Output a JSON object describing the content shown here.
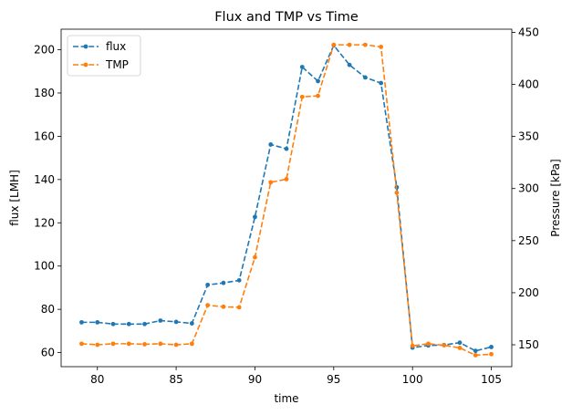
{
  "chart_data": {
    "type": "line",
    "title": "Flux and TMP vs Time",
    "xlabel": "time",
    "ylabel": "flux [LMH]",
    "ylabel_right": "Pressure [kPa]",
    "xlim": [
      77.7,
      106.3
    ],
    "ylim": [
      53.5,
      209.5
    ],
    "ylim_right": [
      129,
      453
    ],
    "xticks": [
      80,
      85,
      90,
      95,
      100,
      105
    ],
    "yticks": [
      60,
      80,
      100,
      120,
      140,
      160,
      180,
      200
    ],
    "yticks_right": [
      150,
      200,
      250,
      300,
      350,
      400,
      450
    ],
    "grid": false,
    "legend_position": "upper left",
    "x": [
      79,
      80,
      81,
      82,
      83,
      84,
      85,
      86,
      87,
      88,
      89,
      90,
      91,
      92,
      93,
      94,
      95,
      96,
      97,
      98,
      99,
      100,
      101,
      102,
      103,
      104,
      105
    ],
    "series": [
      {
        "name": "flux",
        "axis": "left",
        "color": "#1f77b4",
        "values": [
          74,
          74,
          73.2,
          73.2,
          73.2,
          74.8,
          74.2,
          73.5,
          91.3,
          92.2,
          93.4,
          122.7,
          156.2,
          154.2,
          192,
          185.5,
          202,
          193,
          187.2,
          184.6,
          136.4,
          62.3,
          63.3,
          63.5,
          64.6,
          60.8,
          62.6
        ]
      },
      {
        "name": "TMP",
        "axis": "right",
        "color": "#ff7f0e",
        "values": [
          151,
          150,
          151,
          151,
          150.5,
          151,
          150,
          151,
          188,
          186.5,
          186,
          234,
          306,
          309,
          388,
          389,
          438,
          438,
          438,
          436,
          296,
          149,
          151,
          149.5,
          147,
          140,
          141
        ]
      }
    ]
  }
}
